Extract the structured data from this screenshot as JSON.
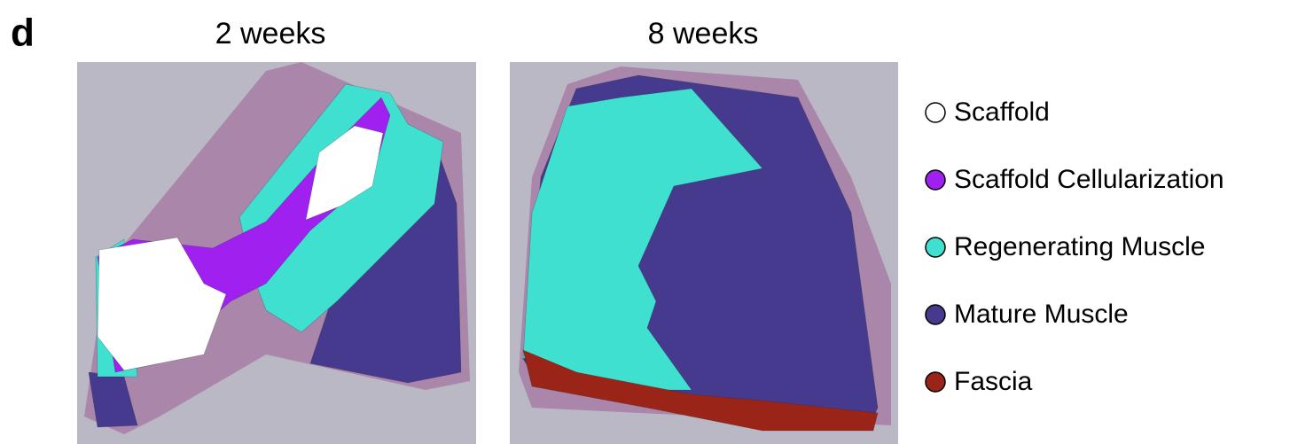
{
  "panel_label": "d",
  "panels": [
    {
      "title": "2 weeks"
    },
    {
      "title": "8 weeks"
    }
  ],
  "legend": [
    {
      "label": "Scaffold",
      "color": "#ffffff"
    },
    {
      "label": "Scaffold Cellularization",
      "color": "#a020f0"
    },
    {
      "label": "Regenerating Muscle",
      "color": "#40e0d0"
    },
    {
      "label": "Mature Muscle",
      "color": "#463a8e"
    },
    {
      "label": "Fascia",
      "color": "#9b2418"
    }
  ]
}
